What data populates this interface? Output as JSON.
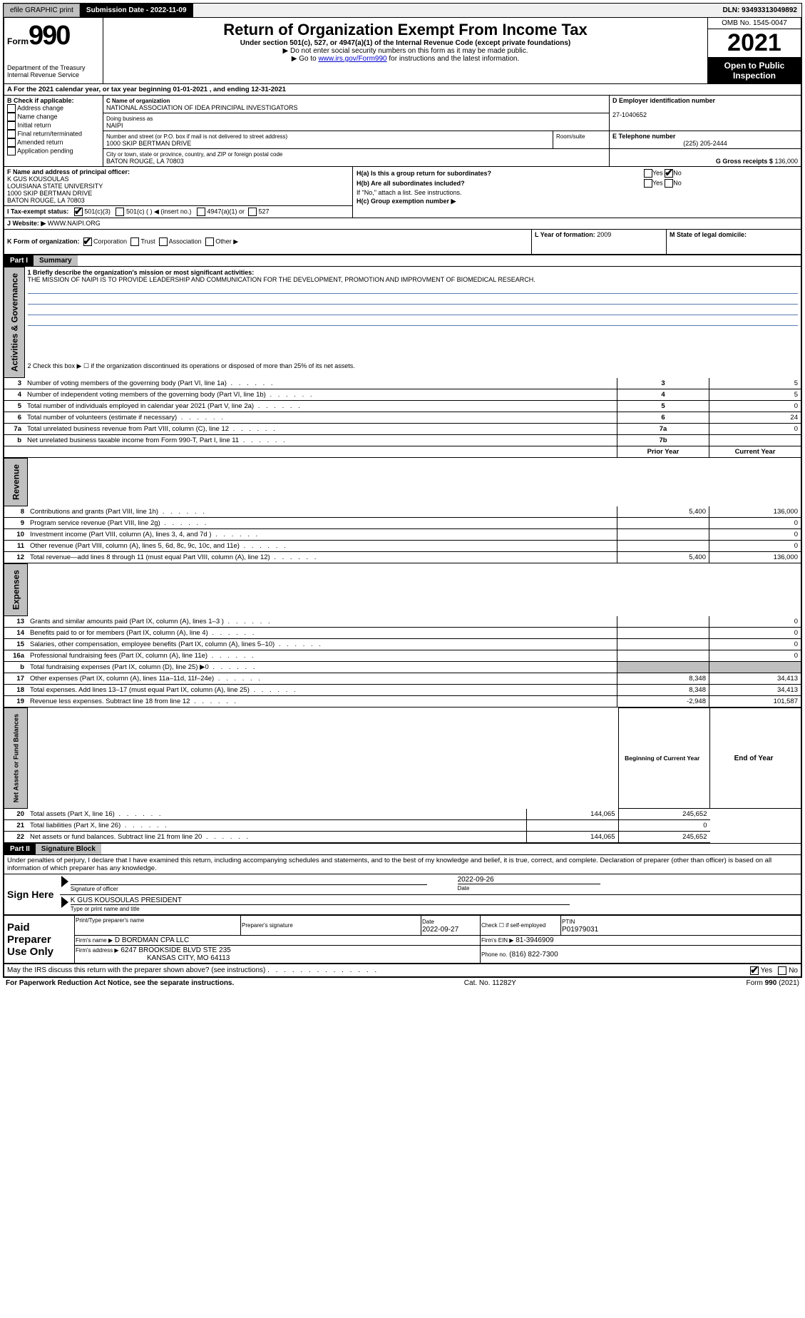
{
  "topbar": {
    "efile": "efile GRAPHIC print",
    "submission_label": "Submission Date - 2022-11-09",
    "dln_label": "DLN: 93493313049892"
  },
  "header": {
    "form_prefix": "Form",
    "form_number": "990",
    "dept": "Department of the Treasury\nInternal Revenue Service",
    "title": "Return of Organization Exempt From Income Tax",
    "subtitle": "Under section 501(c), 527, or 4947(a)(1) of the Internal Revenue Code (except private foundations)",
    "line1": "▶ Do not enter social security numbers on this form as it may be made public.",
    "line2_pre": "▶ Go to ",
    "line2_link": "www.irs.gov/Form990",
    "line2_post": " for instructions and the latest information.",
    "omb": "OMB No. 1545-0047",
    "year": "2021",
    "open_public": "Open to Public Inspection"
  },
  "sectionA": {
    "line": "A For the 2021 calendar year, or tax year beginning 01-01-2021   , and ending 12-31-2021"
  },
  "sectionB": {
    "label": "B Check if applicable:",
    "items": [
      "Address change",
      "Name change",
      "Initial return",
      "Final return/terminated",
      "Amended return",
      "Application pending"
    ]
  },
  "sectionC": {
    "name_label": "C Name of organization",
    "name": "NATIONAL ASSOCIATION OF IDEA PRINCIPAL INVESTIGATORS",
    "dba_label": "Doing business as",
    "dba": "NAIPI",
    "street_label": "Number and street (or P.O. box if mail is not delivered to street address)",
    "street": "1000 SKIP BERTMAN DRIVE",
    "room_label": "Room/suite",
    "city_label": "City or town, state or province, country, and ZIP or foreign postal code",
    "city": "BATON ROUGE, LA  70803"
  },
  "sectionD": {
    "label": "D Employer identification number",
    "value": "27-1040652"
  },
  "sectionE": {
    "label": "E Telephone number",
    "value": "(225) 205-2444"
  },
  "sectionG": {
    "label": "G Gross receipts $",
    "value": "136,000"
  },
  "sectionF": {
    "label": "F  Name and address of principal officer:",
    "name": "K GUS KOUSOULAS",
    "addr1": "LOUISIANA STATE UNIVERSITY",
    "addr2": "1000 SKIP BERTMAN DRIVE",
    "addr3": "BATON ROUGE, LA  70803"
  },
  "sectionH": {
    "a": "H(a)  Is this a group return for subordinates?",
    "b": "H(b)  Are all subordinates included?",
    "b_note": "If \"No,\" attach a list. See instructions.",
    "c": "H(c)  Group exemption number ▶",
    "yes": "Yes",
    "no": "No"
  },
  "sectionI": {
    "label": "I  Tax-exempt status:",
    "opt1": "501(c)(3)",
    "opt2": "501(c) (  ) ◀ (insert no.)",
    "opt3": "4947(a)(1) or",
    "opt4": "527"
  },
  "sectionJ": {
    "label": "J  Website: ▶",
    "value": "WWW.NAIPI.ORG"
  },
  "sectionK": {
    "label": "K Form of organization:",
    "opts": [
      "Corporation",
      "Trust",
      "Association",
      "Other ▶"
    ]
  },
  "sectionL": {
    "label": "L Year of formation:",
    "value": "2009"
  },
  "sectionM": {
    "label": "M State of legal domicile:"
  },
  "part1": {
    "header": "Part I",
    "title": "Summary",
    "side1": "Activities & Governance",
    "side2": "Revenue",
    "side3": "Expenses",
    "side4": "Net Assets or Fund Balances",
    "q1": "1  Briefly describe the organization's mission or most significant activities:",
    "q1_ans": "THE MISSION OF NAIPI IS TO PROVIDE LEADERSHIP AND COMMUNICATION FOR THE DEVELOPMENT, PROMOTION AND IMPROVMENT OF BIOMEDICAL RESEARCH.",
    "q2": "2  Check this box ▶ ☐  if the organization discontinued its operations or disposed of more than 25% of its net assets.",
    "rows_gov": [
      {
        "n": "3",
        "t": "Number of voting members of the governing body (Part VI, line 1a)",
        "box": "3",
        "v": "5"
      },
      {
        "n": "4",
        "t": "Number of independent voting members of the governing body (Part VI, line 1b)",
        "box": "4",
        "v": "5"
      },
      {
        "n": "5",
        "t": "Total number of individuals employed in calendar year 2021 (Part V, line 2a)",
        "box": "5",
        "v": "0"
      },
      {
        "n": "6",
        "t": "Total number of volunteers (estimate if necessary)",
        "box": "6",
        "v": "24"
      },
      {
        "n": "7a",
        "t": "Total unrelated business revenue from Part VIII, column (C), line 12",
        "box": "7a",
        "v": "0"
      },
      {
        "n": "b",
        "t": "Net unrelated business taxable income from Form 990-T, Part I, line 11",
        "box": "7b",
        "v": ""
      }
    ],
    "col_prior": "Prior Year",
    "col_current": "Current Year",
    "rows_rev": [
      {
        "n": "8",
        "t": "Contributions and grants (Part VIII, line 1h)",
        "p": "5,400",
        "c": "136,000"
      },
      {
        "n": "9",
        "t": "Program service revenue (Part VIII, line 2g)",
        "p": "",
        "c": "0"
      },
      {
        "n": "10",
        "t": "Investment income (Part VIII, column (A), lines 3, 4, and 7d )",
        "p": "",
        "c": "0"
      },
      {
        "n": "11",
        "t": "Other revenue (Part VIII, column (A), lines 5, 6d, 8c, 9c, 10c, and 11e)",
        "p": "",
        "c": "0"
      },
      {
        "n": "12",
        "t": "Total revenue—add lines 8 through 11 (must equal Part VIII, column (A), line 12)",
        "p": "5,400",
        "c": "136,000"
      }
    ],
    "rows_exp": [
      {
        "n": "13",
        "t": "Grants and similar amounts paid (Part IX, column (A), lines 1–3 )",
        "p": "",
        "c": "0"
      },
      {
        "n": "14",
        "t": "Benefits paid to or for members (Part IX, column (A), line 4)",
        "p": "",
        "c": "0"
      },
      {
        "n": "15",
        "t": "Salaries, other compensation, employee benefits (Part IX, column (A), lines 5–10)",
        "p": "",
        "c": "0"
      },
      {
        "n": "16a",
        "t": "Professional fundraising fees (Part IX, column (A), line 11e)",
        "p": "",
        "c": "0"
      },
      {
        "n": "b",
        "t": "Total fundraising expenses (Part IX, column (D), line 25) ▶0",
        "p": "GRAY",
        "c": "GRAY"
      },
      {
        "n": "17",
        "t": "Other expenses (Part IX, column (A), lines 11a–11d, 11f–24e)",
        "p": "8,348",
        "c": "34,413"
      },
      {
        "n": "18",
        "t": "Total expenses. Add lines 13–17 (must equal Part IX, column (A), line 25)",
        "p": "8,348",
        "c": "34,413"
      },
      {
        "n": "19",
        "t": "Revenue less expenses. Subtract line 18 from line 12",
        "p": "-2,948",
        "c": "101,587"
      }
    ],
    "col_begin": "Beginning of Current Year",
    "col_end": "End of Year",
    "rows_net": [
      {
        "n": "20",
        "t": "Total assets (Part X, line 16)",
        "p": "144,065",
        "c": "245,652"
      },
      {
        "n": "21",
        "t": "Total liabilities (Part X, line 26)",
        "p": "",
        "c": "0"
      },
      {
        "n": "22",
        "t": "Net assets or fund balances. Subtract line 21 from line 20",
        "p": "144,065",
        "c": "245,652"
      }
    ]
  },
  "part2": {
    "header": "Part II",
    "title": "Signature Block",
    "decl": "Under penalties of perjury, I declare that I have examined this return, including accompanying schedules and statements, and to the best of my knowledge and belief, it is true, correct, and complete. Declaration of preparer (other than officer) is based on all information of which preparer has any knowledge.",
    "sign_here": "Sign Here",
    "sig_officer": "Signature of officer",
    "sig_date": "Date",
    "sig_date_val": "2022-09-26",
    "officer_name": "K GUS KOUSOULAS  PRESIDENT",
    "type_name": "Type or print name and title",
    "paid": "Paid Preparer Use Only",
    "prep_name_label": "Print/Type preparer's name",
    "prep_sig_label": "Preparer's signature",
    "prep_date_label": "Date",
    "prep_date": "2022-09-27",
    "check_self": "Check ☐ if self-employed",
    "ptin_label": "PTIN",
    "ptin": "P01979031",
    "firm_name_label": "Firm's name    ▶",
    "firm_name": "D BORDMAN CPA LLC",
    "firm_ein_label": "Firm's EIN ▶",
    "firm_ein": "81-3946909",
    "firm_addr_label": "Firm's address ▶",
    "firm_addr1": "6247 BROOKSIDE BLVD STE 235",
    "firm_addr2": "KANSAS CITY, MO  64113",
    "phone_label": "Phone no.",
    "phone": "(816) 822-7300",
    "may_irs": "May the IRS discuss this return with the preparer shown above? (see instructions)",
    "yes": "Yes",
    "no": "No"
  },
  "footer": {
    "left": "For Paperwork Reduction Act Notice, see the separate instructions.",
    "mid": "Cat. No. 11282Y",
    "right_pre": "Form ",
    "right_bold": "990",
    "right_post": " (2021)"
  }
}
